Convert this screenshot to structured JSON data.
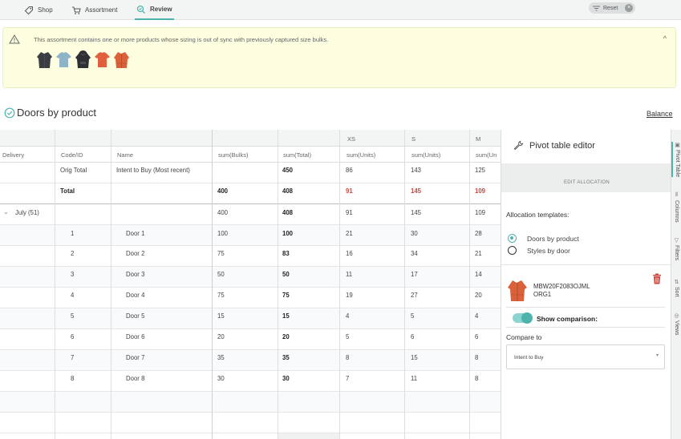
{
  "nav": {
    "tabs": [
      {
        "label": "Shop",
        "icon": "tag-icon"
      },
      {
        "label": "Assortment",
        "icon": "cart-icon"
      },
      {
        "label": "Review",
        "icon": "review-search-icon",
        "active": true
      }
    ],
    "reset_label": "Reset"
  },
  "banner": {
    "message": "This assortment contains one or more products whose sizing is out of sync with previously captured size bulks.",
    "thumbnails": [
      {
        "name": "dark-jacket-thumbnail",
        "color": "#3a3d42"
      },
      {
        "name": "light-tee-thumbnail",
        "color": "#8fb4c8"
      },
      {
        "name": "black-hoodie-thumbnail",
        "color": "#2f3033"
      },
      {
        "name": "orange-tee-thumbnail",
        "color": "#e0603e"
      },
      {
        "name": "orange-jacket-thumbnail",
        "color": "#d9623a"
      }
    ]
  },
  "page": {
    "title": "Doors by product",
    "balance_link": "Balance"
  },
  "grid": {
    "size_headers": [
      "XS",
      "S",
      "M"
    ],
    "columns": [
      "Delivery",
      "Code/ID",
      "Name",
      "sum(Bulks)",
      "sum(Total)",
      "sum(Units)",
      "sum(Units)",
      "sum(Un"
    ],
    "orig_total": {
      "code": "Orig Total",
      "name": "Intent to Buy (Most recent)",
      "bulks": "",
      "total": "450",
      "xs": "86",
      "s": "143",
      "m": "125"
    },
    "total": {
      "code": "Total",
      "bulks": "400",
      "total": "408",
      "xs": "91",
      "s": "145",
      "m": "109"
    },
    "group": {
      "label": "July (51)",
      "bulks": "400",
      "total": "408",
      "xs": "91",
      "s": "145",
      "m": "109"
    },
    "rows": [
      {
        "id": "1",
        "name": "Door 1",
        "bulks": "100",
        "total": "100",
        "xs": "21",
        "s": "30",
        "m": "28"
      },
      {
        "id": "2",
        "name": "Door 2",
        "bulks": "75",
        "total": "83",
        "xs": "16",
        "s": "34",
        "m": "21"
      },
      {
        "id": "3",
        "name": "Door 3",
        "bulks": "50",
        "total": "50",
        "xs": "11",
        "s": "17",
        "m": "14"
      },
      {
        "id": "4",
        "name": "Door 4",
        "bulks": "75",
        "total": "75",
        "xs": "19",
        "s": "27",
        "m": "20"
      },
      {
        "id": "5",
        "name": "Door 5",
        "bulks": "15",
        "total": "15",
        "xs": "4",
        "s": "5",
        "m": "4"
      },
      {
        "id": "6",
        "name": "Door 6",
        "bulks": "20",
        "total": "20",
        "xs": "5",
        "s": "6",
        "m": "6"
      },
      {
        "id": "7",
        "name": "Door 7",
        "bulks": "35",
        "total": "35",
        "xs": "8",
        "s": "15",
        "m": "8"
      },
      {
        "id": "8",
        "name": "Door 8",
        "bulks": "30",
        "total": "30",
        "xs": "7",
        "s": "11",
        "m": "8"
      }
    ]
  },
  "panel": {
    "title": "Pivot table editor",
    "edit_allocation": "EDIT ALLOCATION",
    "alloc_label": "Allocation templates:",
    "templates": [
      {
        "label": "Doors by product",
        "selected": true
      },
      {
        "label": "Styles by door",
        "selected": false
      }
    ],
    "product_code_line1": "MBW20F2083OJML",
    "product_code_line2": "ORG1",
    "show_comparison": "Show comparison:",
    "compare_to_label": "Compare to",
    "compare_to_value": "Intent to Buy"
  },
  "strip": {
    "items": [
      "Pivot Table",
      "Columns",
      "Filters",
      "Sort",
      "Views"
    ]
  },
  "colors": {
    "accent": "#4fb3ad",
    "warning_bg": "#fdfde0",
    "negative": "#d0463b",
    "trash": "#d0463b"
  }
}
